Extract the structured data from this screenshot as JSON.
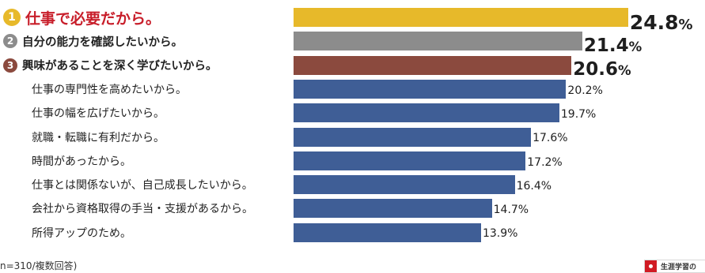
{
  "chart_data": {
    "type": "bar",
    "orientation": "horizontal",
    "categories": [
      "仕事で必要だから。",
      "自分の能力を確認したいから。",
      "興味があることを深く学びたいから。",
      "仕事の専門性を高めたいから。",
      "仕事の幅を広げたいから。",
      "就職・転職に有利だから。",
      "時間があったから。",
      "仕事とは関係ないが、自己成長したいから。",
      "会社から資格取得の手当・支援があるから。",
      "所得アップのため。"
    ],
    "values": [
      24.8,
      21.4,
      20.6,
      20.2,
      19.7,
      17.6,
      17.2,
      16.4,
      14.7,
      13.9
    ],
    "value_labels": [
      "24.8",
      "21.4",
      "20.6",
      "20.2",
      "19.7",
      "17.6",
      "17.2",
      "16.4",
      "14.7",
      "13.9"
    ],
    "unit": "%",
    "ranks": [
      "1",
      "2",
      "3"
    ],
    "colors": {
      "rank1": "#e7b92a",
      "rank2": "#8c8c8c",
      "rank3": "#8b4a3e",
      "other": "#3f5e96",
      "rank1_text": "#c81e2a"
    },
    "title": "",
    "xlabel": "",
    "ylabel": "",
    "grid": false,
    "legend": "none"
  },
  "note": "n=310/複数回答)",
  "logo_text": "生涯学習の"
}
